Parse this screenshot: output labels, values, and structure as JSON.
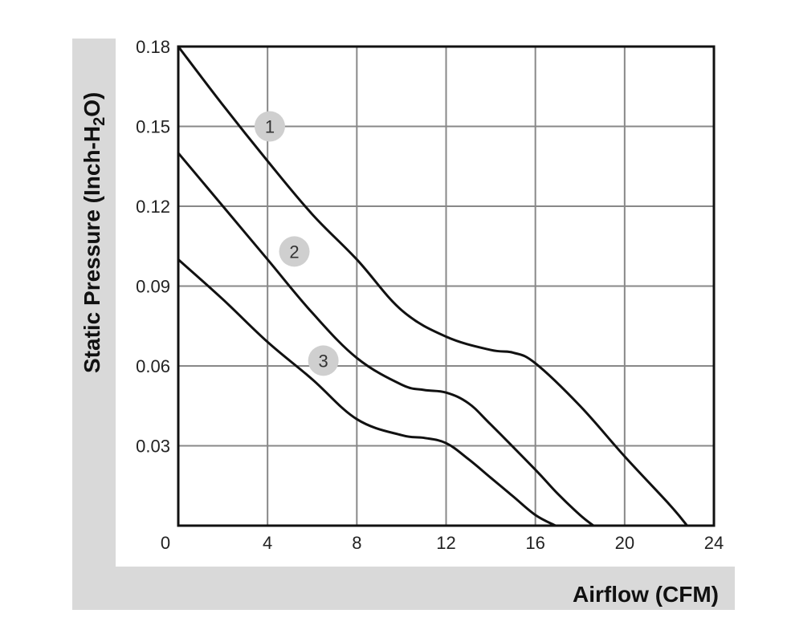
{
  "chart_data": {
    "type": "line",
    "xlabel": "Airflow (CFM)",
    "ylabel_main": "Static Pressure (Inch-H",
    "ylabel_sub": "2",
    "ylabel_end": "O)",
    "xlim": [
      0,
      24
    ],
    "ylim": [
      0,
      0.18
    ],
    "xticks": [
      0,
      4,
      8,
      12,
      16,
      20,
      24
    ],
    "yticks": [
      0.03,
      0.06,
      0.09,
      0.12,
      0.15,
      0.18
    ],
    "xtick_labels": [
      "0",
      "4",
      "8",
      "12",
      "16",
      "20",
      "24"
    ],
    "ytick_labels": [
      "0.03",
      "0.06",
      "0.09",
      "0.12",
      "0.15",
      "0.18"
    ],
    "grid": true,
    "series": [
      {
        "name": "1",
        "marker_at": [
          4.1,
          0.15
        ],
        "x": [
          0,
          2,
          4,
          6,
          8,
          10,
          12,
          14,
          15,
          16,
          18,
          20,
          22,
          22.8
        ],
        "y": [
          0.18,
          0.158,
          0.137,
          0.117,
          0.1,
          0.081,
          0.071,
          0.066,
          0.065,
          0.061,
          0.045,
          0.026,
          0.008,
          0.0
        ]
      },
      {
        "name": "2",
        "marker_at": [
          5.2,
          0.103
        ],
        "x": [
          0,
          2,
          4,
          6,
          8,
          10,
          11,
          12,
          13,
          14,
          16,
          17,
          18,
          18.6
        ],
        "y": [
          0.14,
          0.12,
          0.1,
          0.08,
          0.063,
          0.053,
          0.051,
          0.05,
          0.046,
          0.038,
          0.021,
          0.012,
          0.004,
          0.0
        ]
      },
      {
        "name": "3",
        "marker_at": [
          6.5,
          0.062
        ],
        "x": [
          0,
          2,
          4,
          6,
          8,
          10,
          11,
          12,
          13,
          14,
          15,
          16,
          16.9
        ],
        "y": [
          0.1,
          0.085,
          0.069,
          0.055,
          0.04,
          0.034,
          0.033,
          0.031,
          0.025,
          0.018,
          0.011,
          0.004,
          0.0
        ]
      }
    ]
  }
}
